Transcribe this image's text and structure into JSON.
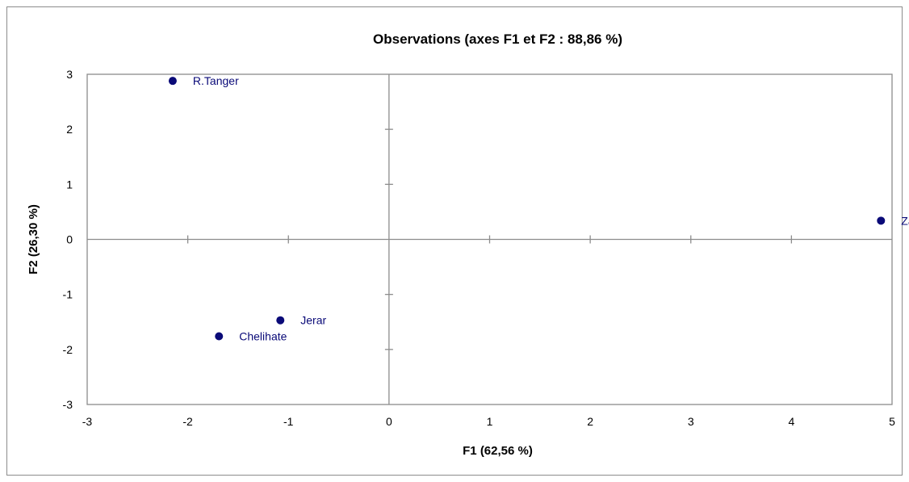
{
  "chart_data": {
    "type": "scatter",
    "title": "Observations (axes F1 et F2 : 88,86 %)",
    "xlabel": "F1 (62,56 %)",
    "ylabel": "F2 (26,30 %)",
    "xlim": [
      -3,
      5
    ],
    "ylim": [
      -3,
      3
    ],
    "xticks": [
      -3,
      -2,
      -1,
      0,
      1,
      2,
      3,
      4,
      5
    ],
    "yticks": [
      -3,
      -2,
      -1,
      0,
      1,
      2,
      3
    ],
    "grid": false,
    "legend": "none",
    "point_color": "#0a0a78",
    "axis_color": "#8c8c8c",
    "points": [
      {
        "label": "R.Tanger",
        "x": -2.15,
        "y": 2.88
      },
      {
        "label": "Jerar",
        "x": -1.08,
        "y": -1.47
      },
      {
        "label": "Chelihate",
        "x": -1.69,
        "y": -1.76
      },
      {
        "label": "Zagouta",
        "x": 4.89,
        "y": 0.34
      }
    ]
  }
}
